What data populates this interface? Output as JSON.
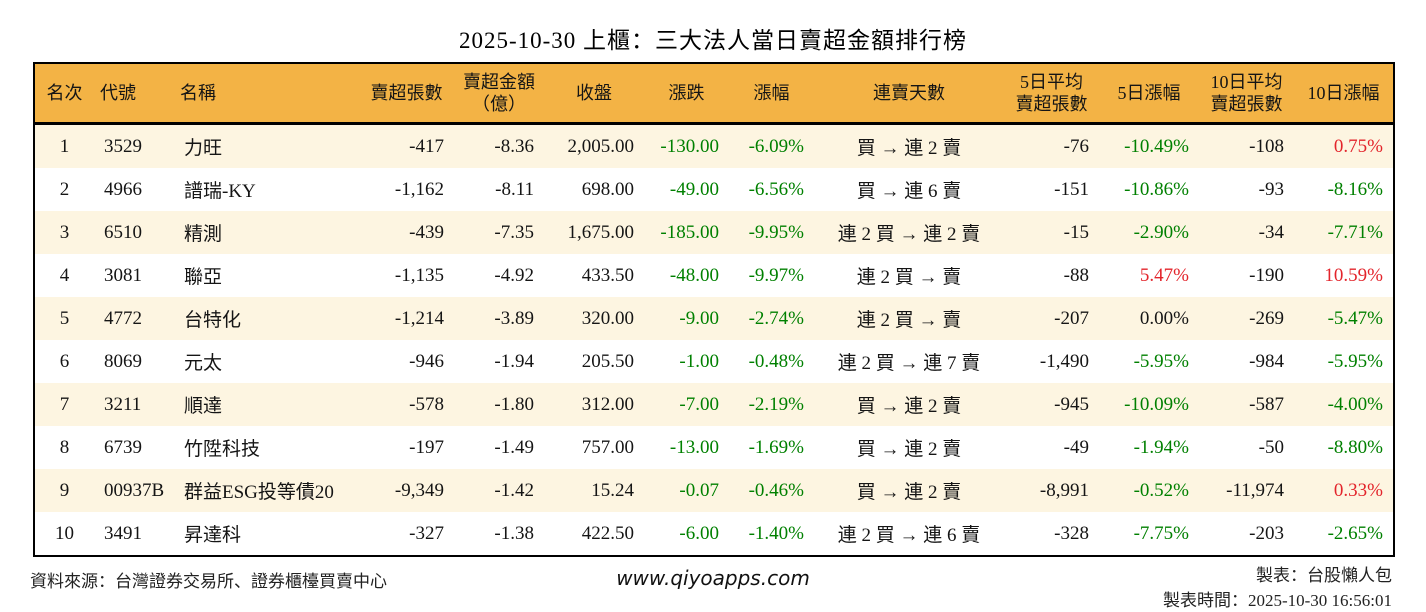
{
  "title": "2025-10-30 上櫃：三大法人當日賣超金額排行榜",
  "colors": {
    "header_bg": "#f3b345",
    "row_alt": "#fdf5e1",
    "row_white": "#ffffff",
    "green": "#008000",
    "red": "#e3242b",
    "border": "#000000"
  },
  "chart_data": {
    "type": "table",
    "title": "2025-10-30 上櫃：三大法人當日賣超金額排行榜",
    "columns": [
      {
        "key": "rank",
        "label": "名次",
        "align": "center"
      },
      {
        "key": "code",
        "label": "代號",
        "align": "left"
      },
      {
        "key": "name",
        "label": "名稱",
        "align": "left"
      },
      {
        "key": "sell_vol",
        "label": "賣超張數",
        "align": "right"
      },
      {
        "key": "sell_amt",
        "label": "賣超金額\n（億）",
        "align": "right"
      },
      {
        "key": "close",
        "label": "收盤",
        "align": "right"
      },
      {
        "key": "chg",
        "label": "漲跌",
        "align": "right"
      },
      {
        "key": "chg_pct",
        "label": "漲幅",
        "align": "right"
      },
      {
        "key": "streak",
        "label": "連賣天數",
        "align": "center"
      },
      {
        "key": "avg5",
        "label": "5日平均\n賣超張數",
        "align": "right"
      },
      {
        "key": "pct5",
        "label": "5日漲幅",
        "align": "right"
      },
      {
        "key": "avg10",
        "label": "10日平均\n賣超張數",
        "align": "right"
      },
      {
        "key": "pct10",
        "label": "10日漲幅",
        "align": "right"
      }
    ],
    "rows": [
      {
        "rank": "1",
        "code": "3529",
        "name": "力旺",
        "sell_vol": "-417",
        "sell_amt": "-8.36",
        "close": "2,005.00",
        "chg": "-130.00",
        "chg_color": "green",
        "chg_pct": "-6.09%",
        "chg_pct_color": "green",
        "streak": "買 → 連 2 賣",
        "avg5": "-76",
        "pct5": "-10.49%",
        "pct5_color": "green",
        "avg10": "-108",
        "pct10": "0.75%",
        "pct10_color": "red"
      },
      {
        "rank": "2",
        "code": "4966",
        "name": "譜瑞-KY",
        "sell_vol": "-1,162",
        "sell_amt": "-8.11",
        "close": "698.00",
        "chg": "-49.00",
        "chg_color": "green",
        "chg_pct": "-6.56%",
        "chg_pct_color": "green",
        "streak": "買 → 連 6 賣",
        "avg5": "-151",
        "pct5": "-10.86%",
        "pct5_color": "green",
        "avg10": "-93",
        "pct10": "-8.16%",
        "pct10_color": "green"
      },
      {
        "rank": "3",
        "code": "6510",
        "name": "精測",
        "sell_vol": "-439",
        "sell_amt": "-7.35",
        "close": "1,675.00",
        "chg": "-185.00",
        "chg_color": "green",
        "chg_pct": "-9.95%",
        "chg_pct_color": "green",
        "streak": "連 2 買 → 連 2 賣",
        "avg5": "-15",
        "pct5": "-2.90%",
        "pct5_color": "green",
        "avg10": "-34",
        "pct10": "-7.71%",
        "pct10_color": "green"
      },
      {
        "rank": "4",
        "code": "3081",
        "name": "聯亞",
        "sell_vol": "-1,135",
        "sell_amt": "-4.92",
        "close": "433.50",
        "chg": "-48.00",
        "chg_color": "green",
        "chg_pct": "-9.97%",
        "chg_pct_color": "green",
        "streak": "連 2 買 → 賣",
        "avg5": "-88",
        "pct5": "5.47%",
        "pct5_color": "red",
        "avg10": "-190",
        "pct10": "10.59%",
        "pct10_color": "red"
      },
      {
        "rank": "5",
        "code": "4772",
        "name": "台特化",
        "sell_vol": "-1,214",
        "sell_amt": "-3.89",
        "close": "320.00",
        "chg": "-9.00",
        "chg_color": "green",
        "chg_pct": "-2.74%",
        "chg_pct_color": "green",
        "streak": "連 2 買 → 賣",
        "avg5": "-207",
        "pct5": "0.00%",
        "pct5_color": "black",
        "avg10": "-269",
        "pct10": "-5.47%",
        "pct10_color": "green"
      },
      {
        "rank": "6",
        "code": "8069",
        "name": "元太",
        "sell_vol": "-946",
        "sell_amt": "-1.94",
        "close": "205.50",
        "chg": "-1.00",
        "chg_color": "green",
        "chg_pct": "-0.48%",
        "chg_pct_color": "green",
        "streak": "連 2 買 → 連 7 賣",
        "avg5": "-1,490",
        "pct5": "-5.95%",
        "pct5_color": "green",
        "avg10": "-984",
        "pct10": "-5.95%",
        "pct10_color": "green"
      },
      {
        "rank": "7",
        "code": "3211",
        "name": "順達",
        "sell_vol": "-578",
        "sell_amt": "-1.80",
        "close": "312.00",
        "chg": "-7.00",
        "chg_color": "green",
        "chg_pct": "-2.19%",
        "chg_pct_color": "green",
        "streak": "買 → 連 2 賣",
        "avg5": "-945",
        "pct5": "-10.09%",
        "pct5_color": "green",
        "avg10": "-587",
        "pct10": "-4.00%",
        "pct10_color": "green"
      },
      {
        "rank": "8",
        "code": "6739",
        "name": "竹陞科技",
        "sell_vol": "-197",
        "sell_amt": "-1.49",
        "close": "757.00",
        "chg": "-13.00",
        "chg_color": "green",
        "chg_pct": "-1.69%",
        "chg_pct_color": "green",
        "streak": "買 → 連 2 賣",
        "avg5": "-49",
        "pct5": "-1.94%",
        "pct5_color": "green",
        "avg10": "-50",
        "pct10": "-8.80%",
        "pct10_color": "green"
      },
      {
        "rank": "9",
        "code": "00937B",
        "name": "群益ESG投等債20",
        "sell_vol": "-9,349",
        "sell_amt": "-1.42",
        "close": "15.24",
        "chg": "-0.07",
        "chg_color": "green",
        "chg_pct": "-0.46%",
        "chg_pct_color": "green",
        "streak": "買 → 連 2 賣",
        "avg5": "-8,991",
        "pct5": "-0.52%",
        "pct5_color": "green",
        "avg10": "-11,974",
        "pct10": "0.33%",
        "pct10_color": "red"
      },
      {
        "rank": "10",
        "code": "3491",
        "name": "昇達科",
        "sell_vol": "-327",
        "sell_amt": "-1.38",
        "close": "422.50",
        "chg": "-6.00",
        "chg_color": "green",
        "chg_pct": "-1.40%",
        "chg_pct_color": "green",
        "streak": "連 2 買 → 連 6 賣",
        "avg5": "-328",
        "pct5": "-7.75%",
        "pct5_color": "green",
        "avg10": "-203",
        "pct10": "-2.65%",
        "pct10_color": "green"
      }
    ]
  },
  "footer": {
    "source": "資料來源：台灣證券交易所、證券櫃檯買賣中心",
    "website": "www.qiyoapps.com",
    "author": "製表：台股懶人包",
    "timestamp": "製表時間：2025-10-30 16:56:01"
  }
}
